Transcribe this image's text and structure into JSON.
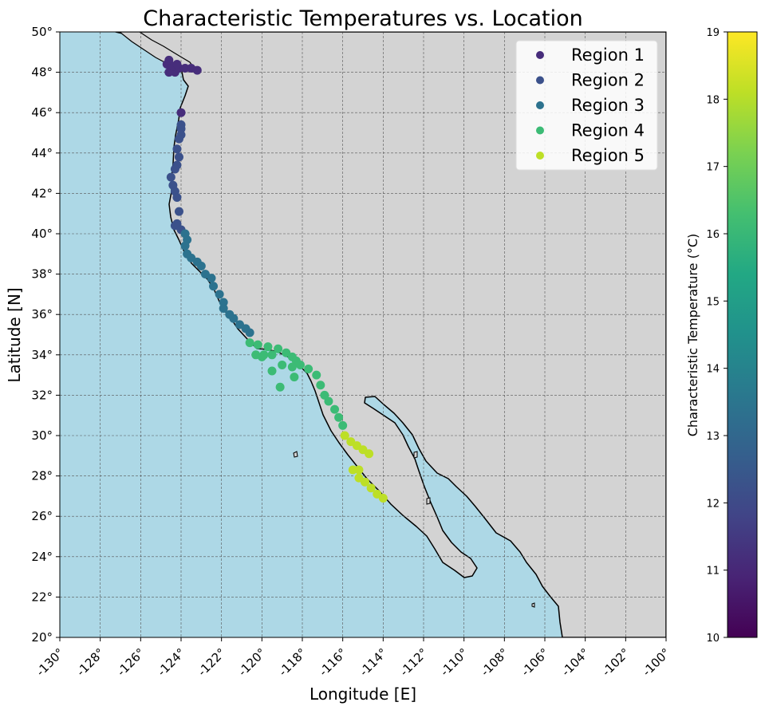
{
  "chart_data": {
    "type": "scatter",
    "title": "Characteristic Temperatures vs. Location",
    "xlabel": "Longitude [E]",
    "ylabel": "Latitude [N]",
    "xlim": [
      -130,
      -100
    ],
    "ylim": [
      20,
      50
    ],
    "x_ticks": [
      "-130°",
      "-128°",
      "-126°",
      "-124°",
      "-122°",
      "-120°",
      "-118°",
      "-116°",
      "-114°",
      "-112°",
      "-110°",
      "-108°",
      "-106°",
      "-104°",
      "-102°",
      "-100°"
    ],
    "y_ticks": [
      "20°",
      "22°",
      "24°",
      "26°",
      "28°",
      "30°",
      "32°",
      "34°",
      "36°",
      "38°",
      "40°",
      "42°",
      "44°",
      "46°",
      "48°",
      "50°"
    ],
    "grid": true,
    "map": {
      "ocean_color": "#add8e6",
      "land_color": "#d3d3d3",
      "coastline_color": "#000000"
    },
    "legend_position": "top-right",
    "colorbar": {
      "label": "Characteristic Temperature (°C)",
      "range": [
        10,
        19
      ],
      "ticks": [
        "10",
        "11",
        "12",
        "13",
        "14",
        "15",
        "16",
        "17",
        "18",
        "19"
      ],
      "colormap": "viridis"
    },
    "series": [
      {
        "name": "Region 1",
        "color": "#472d7b",
        "points": [
          [
            -124.7,
            48.4
          ],
          [
            -124.5,
            48.2
          ],
          [
            -124.3,
            48.0
          ],
          [
            -124.6,
            48.0
          ],
          [
            -124.4,
            48.3
          ],
          [
            -124.1,
            48.2
          ],
          [
            -123.8,
            48.2
          ],
          [
            -123.5,
            48.2
          ],
          [
            -123.2,
            48.1
          ],
          [
            -124.6,
            48.6
          ],
          [
            -124.2,
            48.4
          ],
          [
            -124.0,
            46.0
          ]
        ]
      },
      {
        "name": "Region 2",
        "color": "#3b518b",
        "points": [
          [
            -124.0,
            45.4
          ],
          [
            -124.0,
            45.2
          ],
          [
            -124.0,
            44.9
          ],
          [
            -124.1,
            44.7
          ],
          [
            -124.2,
            44.2
          ],
          [
            -124.1,
            43.8
          ],
          [
            -124.2,
            43.4
          ],
          [
            -124.3,
            43.2
          ],
          [
            -124.5,
            42.8
          ],
          [
            -124.4,
            42.4
          ],
          [
            -124.3,
            42.1
          ],
          [
            -124.2,
            41.8
          ],
          [
            -124.1,
            41.1
          ],
          [
            -124.2,
            40.5
          ],
          [
            -124.3,
            40.4
          ],
          [
            -124.0,
            40.2
          ]
        ]
      },
      {
        "name": "Region 3",
        "color": "#2c728e",
        "points": [
          [
            -123.8,
            40.0
          ],
          [
            -123.7,
            39.7
          ],
          [
            -123.8,
            39.4
          ],
          [
            -123.7,
            39.0
          ],
          [
            -123.5,
            38.8
          ],
          [
            -123.2,
            38.6
          ],
          [
            -123.0,
            38.4
          ],
          [
            -122.8,
            38.0
          ],
          [
            -122.5,
            37.8
          ],
          [
            -122.4,
            37.4
          ],
          [
            -122.1,
            37.0
          ],
          [
            -121.9,
            36.6
          ],
          [
            -121.9,
            36.3
          ],
          [
            -121.6,
            36.0
          ],
          [
            -121.4,
            35.8
          ],
          [
            -121.1,
            35.5
          ],
          [
            -120.8,
            35.3
          ],
          [
            -120.6,
            35.1
          ]
        ]
      },
      {
        "name": "Region 4",
        "color": "#3cbb75",
        "points": [
          [
            -120.6,
            34.6
          ],
          [
            -120.2,
            34.5
          ],
          [
            -119.7,
            34.4
          ],
          [
            -119.2,
            34.3
          ],
          [
            -118.8,
            34.1
          ],
          [
            -118.5,
            33.9
          ],
          [
            -118.3,
            33.7
          ],
          [
            -118.1,
            33.5
          ],
          [
            -117.7,
            33.3
          ],
          [
            -117.3,
            33.0
          ],
          [
            -117.1,
            32.5
          ],
          [
            -116.9,
            32.0
          ],
          [
            -116.7,
            31.7
          ],
          [
            -116.4,
            31.3
          ],
          [
            -116.2,
            30.9
          ],
          [
            -116.0,
            30.5
          ],
          [
            -120.3,
            34.0
          ],
          [
            -119.9,
            34.0
          ],
          [
            -119.5,
            34.0
          ],
          [
            -120.0,
            33.9
          ],
          [
            -119.5,
            33.2
          ],
          [
            -119.0,
            33.5
          ],
          [
            -118.5,
            33.4
          ],
          [
            -118.4,
            32.9
          ],
          [
            -119.1,
            32.4
          ]
        ]
      },
      {
        "name": "Region 5",
        "color": "#bddf26",
        "points": [
          [
            -115.9,
            30.0
          ],
          [
            -115.6,
            29.7
          ],
          [
            -115.3,
            29.5
          ],
          [
            -115.0,
            29.3
          ],
          [
            -114.7,
            29.1
          ],
          [
            -115.5,
            28.3
          ],
          [
            -115.2,
            28.3
          ],
          [
            -115.2,
            27.9
          ],
          [
            -114.9,
            27.7
          ],
          [
            -114.6,
            27.4
          ],
          [
            -114.3,
            27.1
          ],
          [
            -114.0,
            26.9
          ]
        ]
      }
    ]
  }
}
